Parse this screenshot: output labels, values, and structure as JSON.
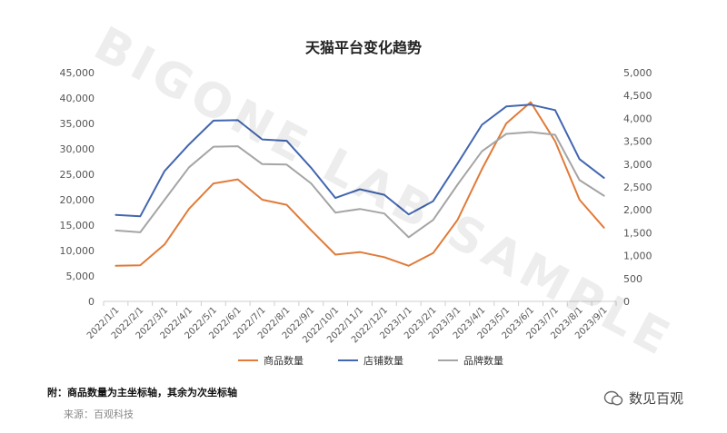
{
  "chart_data": {
    "type": "line",
    "title": "天猫平台变化趋势",
    "x": [
      "2022/1/1",
      "2022/2/1",
      "2022/3/1",
      "2022/4/1",
      "2022/5/1",
      "2022/6/1",
      "2022/7/1",
      "2022/8/1",
      "2022/9/1",
      "2022/10/1",
      "2022/11/1",
      "2022/12/1",
      "2023/1/1",
      "2023/2/1",
      "2023/3/1",
      "2023/4/1",
      "2023/5/1",
      "2023/6/1",
      "2023/7/1",
      "2023/8/1",
      "2023/9/1"
    ],
    "y_left": {
      "ylim": [
        0,
        45000
      ],
      "ticks": [
        "0",
        "5,000",
        "10,000",
        "15,000",
        "20,000",
        "25,000",
        "30,000",
        "35,000",
        "40,000",
        "45,000"
      ]
    },
    "y_right": {
      "ylim": [
        0,
        5000
      ],
      "ticks": [
        "0",
        "500",
        "1,000",
        "1,500",
        "2,000",
        "2,500",
        "3,000",
        "3,500",
        "4,000",
        "4,500",
        "5,000"
      ]
    },
    "series": [
      {
        "name": "商品数量",
        "axis": "left",
        "color": "#e07b39",
        "values": [
          7000,
          7100,
          11200,
          18200,
          23200,
          24000,
          20000,
          19000,
          14000,
          9200,
          9700,
          8700,
          7000,
          9500,
          16000,
          26000,
          35000,
          39200,
          31500,
          20000,
          14500
        ]
      },
      {
        "name": "店铺数量",
        "axis": "right",
        "color": "#4366b0",
        "values": [
          1890,
          1860,
          2850,
          3430,
          3950,
          3960,
          3540,
          3510,
          2920,
          2260,
          2450,
          2330,
          1900,
          2190,
          3010,
          3860,
          4260,
          4300,
          4180,
          3110,
          2700
        ]
      },
      {
        "name": "品牌数量",
        "axis": "right",
        "color": "#a5a5a5",
        "values": [
          1550,
          1510,
          2220,
          2930,
          3380,
          3390,
          3000,
          2990,
          2580,
          1940,
          2020,
          1920,
          1400,
          1780,
          2550,
          3280,
          3660,
          3700,
          3640,
          2650,
          2310
        ]
      }
    ],
    "legend_position": "bottom",
    "grid": false
  },
  "footer": {
    "note": "附：商品数量为主坐标轴，其余为次坐标轴",
    "source": "来源：百观科技",
    "brand": "数见百观"
  },
  "watermark": "BIGONE LAB SAMPLE"
}
